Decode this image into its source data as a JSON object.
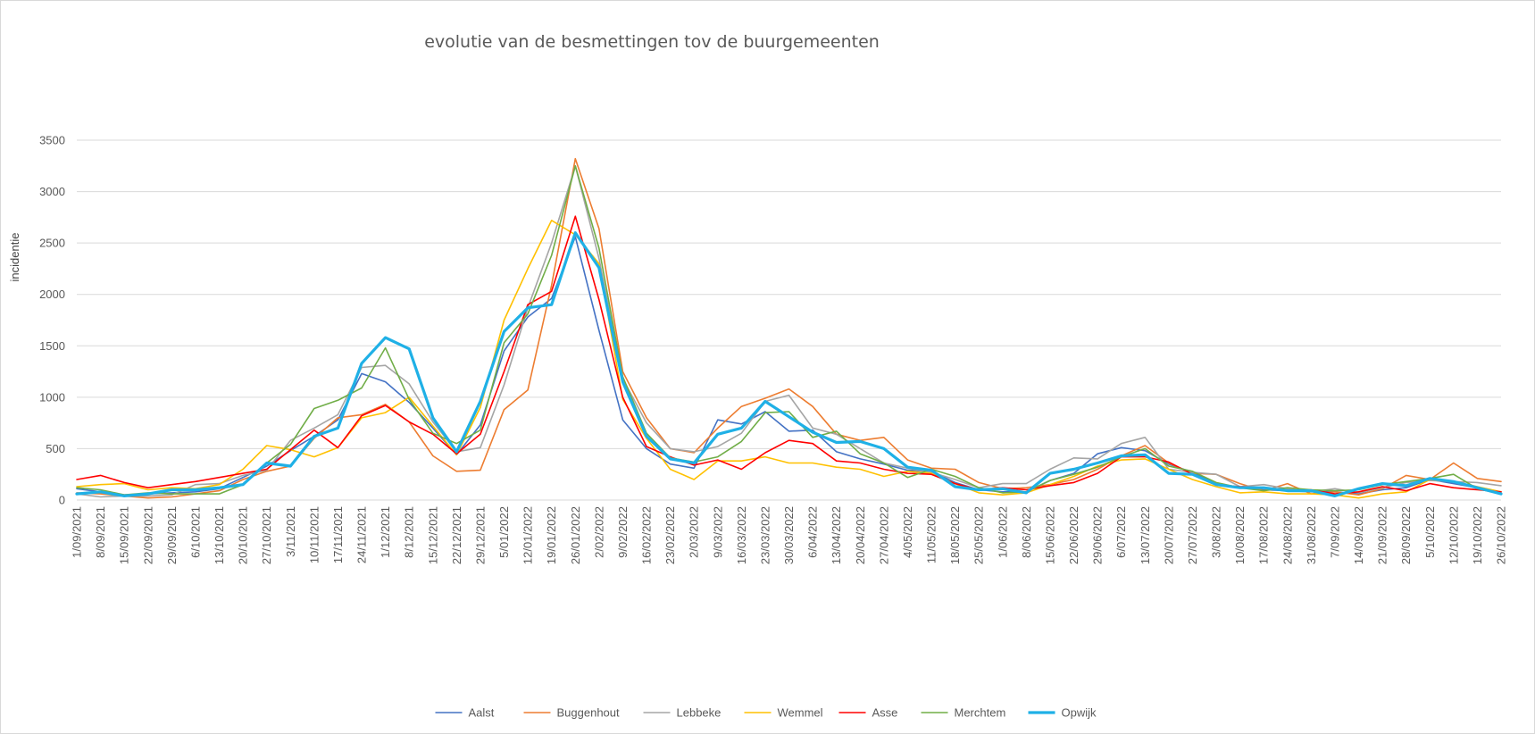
{
  "chart_data": {
    "type": "line",
    "title": "evolutie van de besmettingen tov de buurgemeenten",
    "xlabel": "",
    "ylabel": "incidentie",
    "ylim": [
      0,
      3500
    ],
    "yticks": [
      0,
      500,
      1000,
      1500,
      2000,
      2500,
      3000,
      3500
    ],
    "grid": true,
    "legend_position": "bottom",
    "x": [
      "1/09/2021",
      "8/09/2021",
      "15/09/2021",
      "22/09/2021",
      "29/09/2021",
      "6/10/2021",
      "13/10/2021",
      "20/10/2021",
      "27/10/2021",
      "3/11/2021",
      "10/11/2021",
      "17/11/2021",
      "24/11/2021",
      "1/12/2021",
      "8/12/2021",
      "15/12/2021",
      "22/12/2021",
      "29/12/2021",
      "5/01/2022",
      "12/01/2022",
      "19/01/2022",
      "26/01/2022",
      "2/02/2022",
      "9/02/2022",
      "16/02/2022",
      "23/02/2022",
      "2/03/2022",
      "9/03/2022",
      "16/03/2022",
      "23/03/2022",
      "30/03/2022",
      "6/04/2022",
      "13/04/2022",
      "20/04/2022",
      "27/04/2022",
      "4/05/2022",
      "11/05/2022",
      "18/05/2022",
      "25/05/2022",
      "1/06/2022",
      "8/06/2022",
      "15/06/2022",
      "22/06/2022",
      "29/06/2022",
      "6/07/2022",
      "13/07/2022",
      "20/07/2022",
      "27/07/2022",
      "3/08/2022",
      "10/08/2022",
      "17/08/2022",
      "24/08/2022",
      "31/08/2022",
      "7/09/2022",
      "14/09/2022",
      "21/09/2022",
      "28/09/2022",
      "5/10/2022",
      "12/10/2022",
      "19/10/2022",
      "26/10/2022"
    ],
    "series": [
      {
        "name": "Aalst",
        "color": "#4472c4",
        "width": 1.6,
        "values": [
          110,
          80,
          50,
          60,
          70,
          80,
          110,
          220,
          330,
          480,
          620,
          780,
          1230,
          1150,
          950,
          700,
          440,
          730,
          1450,
          1780,
          1960,
          2560,
          1650,
          780,
          500,
          350,
          310,
          780,
          740,
          860,
          670,
          680,
          470,
          400,
          350,
          290,
          280,
          170,
          100,
          80,
          80,
          190,
          260,
          450,
          510,
          480,
          350,
          270,
          160,
          120,
          100,
          90,
          80,
          80,
          60,
          100,
          120,
          200,
          160,
          120,
          60
        ]
      },
      {
        "name": "Buggenhout",
        "color": "#ed7d31",
        "width": 1.6,
        "values": [
          70,
          60,
          40,
          20,
          30,
          60,
          90,
          200,
          280,
          330,
          600,
          800,
          830,
          930,
          760,
          430,
          280,
          290,
          880,
          1070,
          2090,
          3320,
          2640,
          1250,
          800,
          500,
          460,
          700,
          910,
          990,
          1080,
          910,
          640,
          580,
          610,
          390,
          310,
          300,
          170,
          110,
          120,
          150,
          200,
          300,
          430,
          530,
          360,
          260,
          250,
          160,
          90,
          160,
          60,
          80,
          50,
          110,
          240,
          200,
          360,
          210,
          180
        ]
      },
      {
        "name": "Lebbeke",
        "color": "#a5a5a5",
        "width": 1.6,
        "values": [
          60,
          30,
          40,
          40,
          50,
          150,
          160,
          240,
          290,
          580,
          700,
          830,
          1290,
          1310,
          1130,
          760,
          470,
          510,
          1120,
          1870,
          2500,
          3250,
          2350,
          1180,
          750,
          500,
          470,
          520,
          650,
          960,
          1020,
          700,
          640,
          500,
          360,
          310,
          270,
          200,
          120,
          160,
          160,
          300,
          410,
          400,
          550,
          610,
          300,
          270,
          250,
          130,
          150,
          110,
          80,
          110,
          70,
          120,
          170,
          190,
          180,
          170,
          140
        ]
      },
      {
        "name": "Wemmel",
        "color": "#ffc000",
        "width": 1.6,
        "values": [
          130,
          150,
          160,
          100,
          120,
          110,
          150,
          300,
          530,
          490,
          420,
          510,
          800,
          850,
          1000,
          720,
          440,
          900,
          1750,
          2250,
          2720,
          2580,
          2300,
          980,
          600,
          300,
          200,
          380,
          380,
          420,
          360,
          360,
          320,
          300,
          230,
          280,
          260,
          160,
          70,
          50,
          70,
          150,
          230,
          330,
          390,
          400,
          300,
          200,
          130,
          70,
          80,
          60,
          60,
          50,
          20,
          60,
          80,
          200,
          180,
          130,
          80
        ]
      },
      {
        "name": "Asse",
        "color": "#ff0000",
        "width": 1.6,
        "values": [
          200,
          240,
          170,
          120,
          150,
          180,
          220,
          260,
          300,
          490,
          680,
          510,
          820,
          920,
          760,
          640,
          450,
          640,
          1250,
          1900,
          2030,
          2760,
          1950,
          1000,
          520,
          420,
          340,
          390,
          300,
          460,
          580,
          550,
          380,
          360,
          300,
          260,
          250,
          160,
          100,
          120,
          100,
          140,
          170,
          260,
          420,
          420,
          370,
          250,
          150,
          130,
          120,
          90,
          100,
          60,
          80,
          130,
          90,
          160,
          120,
          100,
          80
        ]
      },
      {
        "name": "Merchtem",
        "color": "#70ad47",
        "width": 1.6,
        "values": [
          120,
          100,
          50,
          70,
          60,
          60,
          60,
          150,
          360,
          540,
          890,
          970,
          1090,
          1480,
          980,
          650,
          550,
          680,
          1530,
          1810,
          2380,
          3250,
          2450,
          1200,
          650,
          410,
          370,
          420,
          570,
          850,
          860,
          610,
          670,
          450,
          360,
          220,
          300,
          230,
          120,
          70,
          80,
          190,
          250,
          320,
          420,
          500,
          330,
          280,
          170,
          120,
          90,
          120,
          100,
          90,
          100,
          150,
          180,
          210,
          250,
          110,
          60
        ]
      },
      {
        "name": "Opwijk",
        "color": "#1fb0e6",
        "width": 3.2,
        "values": [
          60,
          80,
          40,
          60,
          100,
          100,
          120,
          150,
          360,
          330,
          620,
          700,
          1330,
          1580,
          1470,
          800,
          470,
          960,
          1640,
          1870,
          1900,
          2600,
          2260,
          1150,
          620,
          400,
          360,
          640,
          700,
          960,
          810,
          660,
          560,
          570,
          500,
          320,
          290,
          130,
          100,
          110,
          70,
          260,
          300,
          360,
          430,
          440,
          260,
          250,
          150,
          120,
          120,
          90,
          90,
          40,
          110,
          160,
          140,
          210,
          180,
          120,
          60
        ]
      }
    ]
  }
}
